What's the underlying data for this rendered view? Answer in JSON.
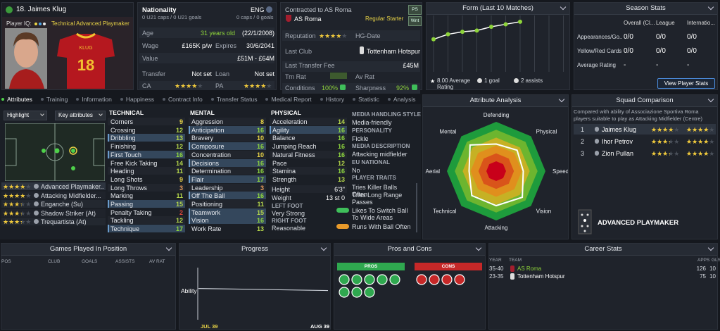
{
  "player": {
    "name": "18. Jaimes Klug",
    "iq_label": "Player IQ:",
    "role": "Technical Advanced Playmaker",
    "shirt_number": "18",
    "shirt_name": "KLUG"
  },
  "info": {
    "nationality_label": "Nationality",
    "nationality": "ENG",
    "u21": "0 U21 caps / 0 U21 goals",
    "caps": "0 caps / 0 goals",
    "rows": [
      {
        "label": "Age",
        "value": "31 years old",
        "value2": "(22/1/2008)"
      },
      {
        "label": "Wage",
        "value": "£165K p/w",
        "label2": "Expires",
        "value2": "30/6/2041"
      },
      {
        "label": "Value",
        "value2": "£51M - £64M"
      },
      {
        "label": "Transfer",
        "value": "Not set",
        "label2": "Loan",
        "value2": "Not set"
      }
    ],
    "ca_label": "CA",
    "ca_stars": 3.5,
    "pa_label": "PA",
    "pa_stars": 3.5
  },
  "contract": {
    "label": "Contracted to AS Roma",
    "club": "AS Roma",
    "status": "Regular Starter",
    "buttons": [
      "PS",
      "Wnt"
    ],
    "reputation_label": "Reputation",
    "reputation_stars": 3.5,
    "hg_label": "HG-Date",
    "last_club_label": "Last Club",
    "last_club": "Tottenham Hotspur",
    "fee_label": "Last Transfer Fee",
    "fee": "£45M",
    "trn_label": "Trn Rat",
    "av_label": "Av Rat",
    "conditions_label": "Conditions",
    "conditions": "100%",
    "sharpness_label": "Sharpness",
    "sharpness": "92%"
  },
  "form": {
    "title": "Form (Last 10 Matches)",
    "values": [
      6.6,
      7.0,
      7.2,
      7.3,
      7.6,
      7.8,
      8.0
    ],
    "ylim": [
      4,
      8.5
    ],
    "average": "8.00 Average Rating",
    "goals": "1 goal",
    "assists": "2 assists"
  },
  "season": {
    "title": "Season Stats",
    "columns": [
      "Overall (Cl...",
      "League",
      "Internatio..."
    ],
    "rows": [
      {
        "label": "Appearances/Go...",
        "values": [
          "0/0",
          "0/0",
          "0/0"
        ]
      },
      {
        "label": "Yellow/Red Cards",
        "values": [
          "0/0",
          "0/0",
          "0/0"
        ]
      },
      {
        "label": "Average Rating",
        "values": [
          "-",
          "-",
          "-"
        ]
      }
    ],
    "button": "View Player Stats"
  },
  "tabs": [
    "Attributes",
    "Training",
    "Information",
    "Happiness",
    "Contract Info",
    "Transfer Status",
    "Medical Report",
    "History",
    "Statistic",
    "Analysis"
  ],
  "highlight": "Highlight",
  "key_attributes": "Key attributes",
  "roles": [
    {
      "name": "Advanced Playmaker...",
      "stars": 3.5
    },
    {
      "name": "Attacking Midfielder...",
      "stars": 3.5
    },
    {
      "name": "Enganche (Su)",
      "stars": 3
    },
    {
      "name": "Shadow Striker (At)",
      "stars": 3
    },
    {
      "name": "Trequartista (At)",
      "stars": 3
    }
  ],
  "attributes": [
    {
      "title": "TECHNICAL",
      "key": [
        2,
        4,
        10,
        13
      ],
      "rows": [
        [
          "Corners",
          9
        ],
        [
          "Crossing",
          12
        ],
        [
          "Dribbling",
          13
        ],
        [
          "Finishing",
          12
        ],
        [
          "First Touch",
          16
        ],
        [
          "Free Kick Taking",
          14
        ],
        [
          "Heading",
          11
        ],
        [
          "Long Shots",
          9
        ],
        [
          "Long Throws",
          3
        ],
        [
          "Marking",
          11
        ],
        [
          "Passing",
          15
        ],
        [
          "Penalty Taking",
          2
        ],
        [
          "Tackling",
          12
        ],
        [
          "Technique",
          17
        ]
      ]
    },
    {
      "title": "MENTAL",
      "key": [
        1,
        3,
        5,
        7,
        9,
        11,
        12
      ],
      "rows": [
        [
          "Aggression",
          8
        ],
        [
          "Anticipation",
          16
        ],
        [
          "Bravery",
          10
        ],
        [
          "Composure",
          16
        ],
        [
          "Concentration",
          10
        ],
        [
          "Decisions",
          16
        ],
        [
          "Determination",
          16
        ],
        [
          "Flair",
          17
        ],
        [
          "Leadership",
          3
        ],
        [
          "Off The Ball",
          16
        ],
        [
          "Positioning",
          11
        ],
        [
          "Teamwork",
          15
        ],
        [
          "Vision",
          16
        ],
        [
          "Work Rate",
          13
        ]
      ]
    },
    {
      "title": "PHYSICAL",
      "key": [
        1
      ],
      "rows": [
        [
          "Acceleration",
          14
        ],
        [
          "Agility",
          16
        ],
        [
          "Balance",
          16
        ],
        [
          "Jumping Reach",
          16
        ],
        [
          "Natural Fitness",
          16
        ],
        [
          "Pace",
          12
        ],
        [
          "Stamina",
          16
        ],
        [
          "Strength",
          13
        ]
      ]
    }
  ],
  "body": {
    "height_label": "Height",
    "height": "6'3\"",
    "weight_label": "Weight",
    "weight": "13 st 0",
    "left_foot_label": "LEFT FOOT",
    "left_foot": "Very Strong",
    "right_foot_label": "RIGHT FOOT",
    "right_foot": "Reasonable"
  },
  "media": {
    "items": [
      {
        "label": "MEDIA HANDLING STYLE",
        "value": "Media-friendly"
      },
      {
        "label": "PERSONALITY",
        "value": "Fickle"
      },
      {
        "label": "MEDIA DESCRIPTION",
        "value": "Attacking midfielder"
      },
      {
        "label": "EU NATIONAL",
        "value": "No"
      }
    ],
    "traits_label": "PLAYER TRAITS",
    "traits": [
      "Tries Killer Balls Often",
      "Tries Long Range Passes",
      "Likes To Switch Ball To Wide Areas",
      "Runs With Ball Often"
    ]
  },
  "analysis": {
    "type": "radar",
    "title": "Attribute Analysis",
    "categories": [
      "Defending",
      "Physical",
      "Speed",
      "Vision",
      "Attacking",
      "Technical",
      "Aerial",
      "Mental"
    ],
    "values": [
      11,
      12,
      11,
      15,
      14,
      14,
      11,
      15
    ],
    "rlim": [
      0,
      20
    ]
  },
  "squad": {
    "title": "Squad Comparison",
    "note": "Compared with ability of Associazione Sportiva Roma players suitable to play as Attacking Midfielder (Centre)",
    "rows": [
      {
        "rank": 1,
        "name": "Jaimes Klug",
        "ca": 3.5,
        "pa": 3.5
      },
      {
        "rank": 2,
        "name": "Ihor Petrov",
        "ca": 3,
        "pa": 3.5
      },
      {
        "rank": 3,
        "name": "Zion Pullan",
        "ca": 3,
        "pa": 3.5
      }
    ],
    "role": "ADVANCED PLAYMAKER"
  },
  "games": {
    "title": "Games Played In Position",
    "columns": [
      "POS",
      "CLUB",
      "GOALS",
      "ASSISTS",
      "AV RAT"
    ]
  },
  "progress": {
    "title": "Progress",
    "ylabel": "Ability",
    "x": [
      "JUL 39",
      "AUG 39"
    ],
    "values": [
      150,
      140
    ],
    "ylim": [
      0,
      250
    ]
  },
  "pros_cons": {
    "title": "Pros and Cons",
    "pros": "PROS",
    "cons": "CONS"
  },
  "career": {
    "title": "Career Stats",
    "columns": [
      "YEAR",
      "TEAM",
      "APPS",
      "GLS"
    ],
    "rows": [
      [
        "35-40",
        "AS Roma",
        126,
        10
      ],
      [
        "23-35",
        "Tottenham Hotspur",
        75,
        10
      ]
    ]
  }
}
